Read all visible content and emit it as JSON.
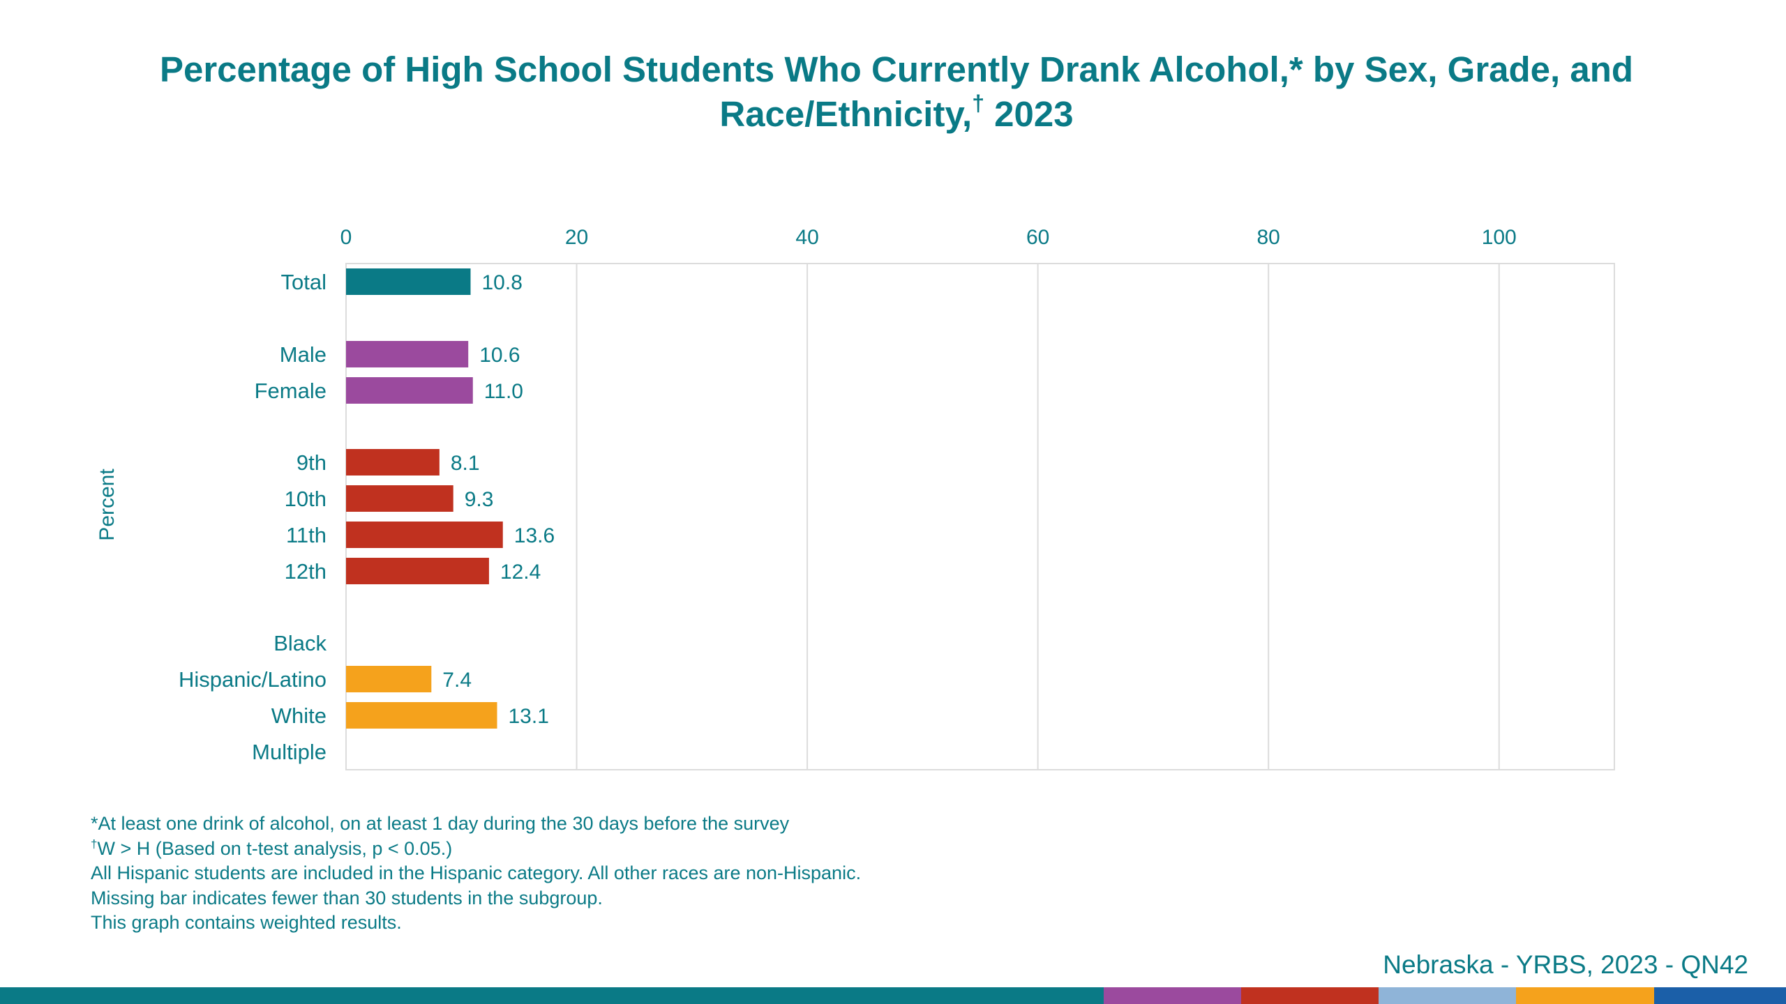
{
  "chart_data": {
    "type": "bar",
    "orientation": "horizontal",
    "title_main": "Percentage of High School Students Who Currently Drank Alcohol,* by Sex, Grade, and Race/Ethnicity,",
    "title_dagger": "†",
    "title_year": " 2023",
    "ylabel": "Percent",
    "xlim": [
      0,
      110
    ],
    "x_ticks": [
      0,
      20,
      40,
      60,
      80,
      100
    ],
    "grid": true,
    "categories": [
      "Total",
      "Male",
      "Female",
      "9th",
      "10th",
      "11th",
      "12th",
      "Black",
      "Hispanic/Latino",
      "White",
      "Multiple"
    ],
    "values": [
      10.8,
      10.6,
      11.0,
      8.1,
      9.3,
      13.6,
      12.4,
      null,
      7.4,
      13.1,
      null
    ],
    "value_labels": [
      "10.8",
      "10.6",
      "11.0",
      "8.1",
      "9.3",
      "13.6",
      "12.4",
      "",
      "7.4",
      "13.1",
      ""
    ],
    "groups": [
      "total",
      "sex",
      "sex",
      "grade",
      "grade",
      "grade",
      "grade",
      "race",
      "race",
      "race",
      "race"
    ],
    "group_colors": {
      "total": "#0a7a86",
      "sex": "#9b4a9e",
      "grade": "#c0311f",
      "race": "#f5a21c"
    }
  },
  "footnotes": {
    "line1": "*At least one drink of alcohol, on at least 1 day during the 30 days before the survey",
    "line2_mark": "†",
    "line2": "W > H (Based on t-test analysis, p < 0.05.)",
    "line3": "All Hispanic students are included in the Hispanic category.  All other races are non-Hispanic.",
    "line4": "Missing bar indicates fewer than 30 students in the subgroup.",
    "line5": "This graph contains weighted results."
  },
  "source": "Nebraska - YRBS, 2023 - QN42",
  "bottom_bar": [
    {
      "color": "#0a7a86",
      "fraction": 0.618
    },
    {
      "color": "#9b4a9e",
      "fraction": 0.077
    },
    {
      "color": "#c0311f",
      "fraction": 0.077
    },
    {
      "color": "#8fb4d8",
      "fraction": 0.077
    },
    {
      "color": "#f5a21c",
      "fraction": 0.077
    },
    {
      "color": "#1b5fa8",
      "fraction": 0.074
    }
  ]
}
